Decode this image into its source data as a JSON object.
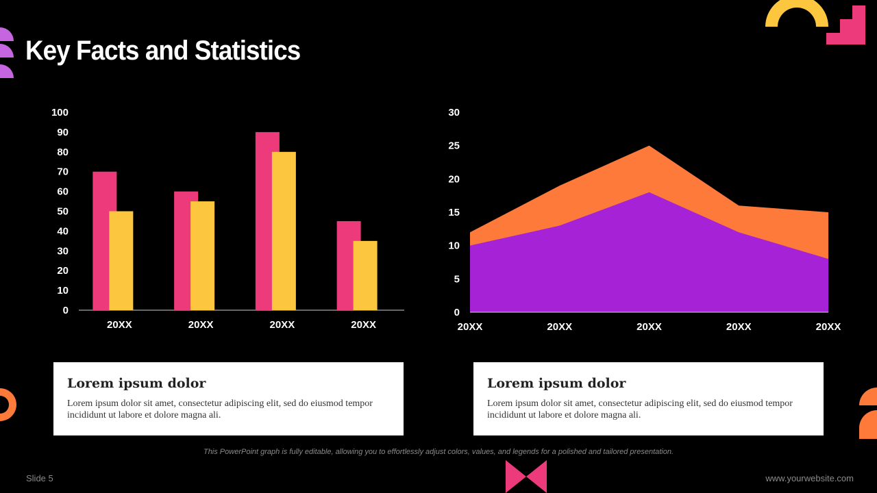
{
  "slide": {
    "title": "Key Facts and Statistics",
    "footnote": "This PowerPoint graph is fully editable, allowing you to effortlessly adjust colors, values, and legends for a polished and tailored presentation.",
    "slide_number": "Slide 5",
    "website": "www.yourwebsite.com"
  },
  "cards": [
    {
      "heading": "Lorem ipsum dolor",
      "body": "Lorem ipsum dolor sit amet, consectetur adipiscing elit, sed do eiusmod tempor incididunt ut labore et dolore magna ali."
    },
    {
      "heading": "Lorem ipsum dolor",
      "body": "Lorem ipsum dolor sit amet, consectetur adipiscing elit, sed do eiusmod tempor incididunt ut labore et dolore magna ali."
    }
  ],
  "colors": {
    "background": "#000000",
    "pink": "#EC3A7B",
    "yellow": "#FCC73E",
    "orange": "#FD7A3A",
    "purple": "#A622D6",
    "lavender": "#C566E0"
  },
  "chart_data": [
    {
      "type": "bar",
      "categories": [
        "20XX",
        "20XX",
        "20XX",
        "20XX"
      ],
      "series": [
        {
          "values": [
            70,
            60,
            90,
            45
          ],
          "color": "#EC3A7B"
        },
        {
          "values": [
            50,
            55,
            80,
            35
          ],
          "color": "#FCC73E"
        }
      ],
      "ylim": [
        0,
        100
      ],
      "yticks": [
        0,
        10,
        20,
        30,
        40,
        50,
        60,
        70,
        80,
        90,
        100
      ],
      "grid": false,
      "legend": "none"
    },
    {
      "type": "area",
      "categories": [
        "20XX",
        "20XX",
        "20XX",
        "20XX",
        "20XX"
      ],
      "series": [
        {
          "values": [
            12,
            19,
            25,
            16,
            15
          ],
          "color": "#FD7A3A"
        },
        {
          "values": [
            10,
            13,
            18,
            12,
            8
          ],
          "color": "#A622D6"
        }
      ],
      "ylim": [
        0,
        30
      ],
      "yticks": [
        0,
        5,
        10,
        15,
        20,
        25,
        30
      ],
      "grid": false,
      "legend": "none"
    }
  ]
}
